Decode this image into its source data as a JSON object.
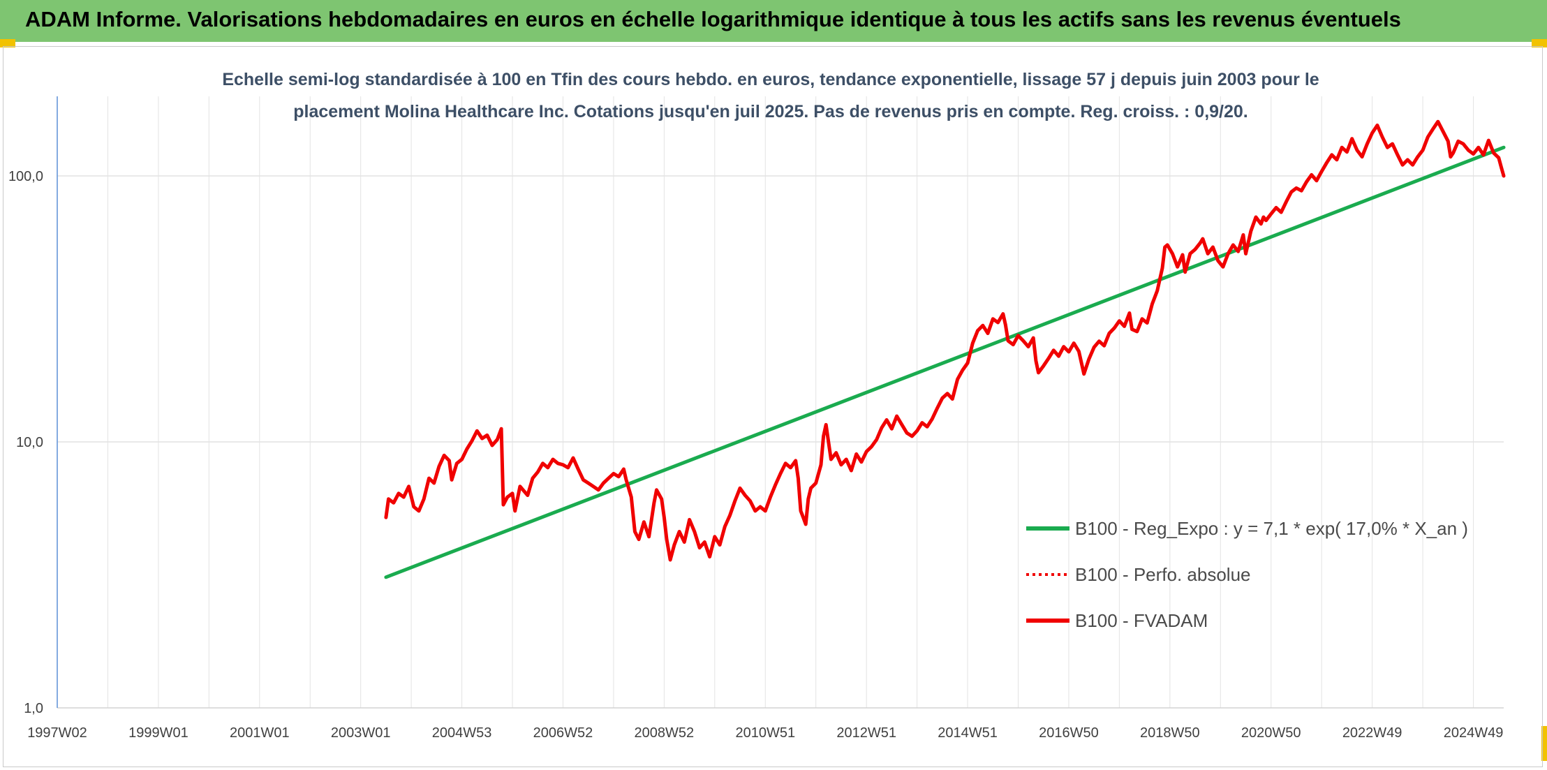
{
  "header": {
    "title": "ADAM Informe. Valorisations hebdomadaires en euros en échelle logarithmique identique à tous les actifs sans les revenus éventuels"
  },
  "colors": {
    "header_bg": "#7ec571",
    "corner_accent": "#f2c200",
    "trend": "#1aab4f",
    "series": "#f00000"
  },
  "chart_data": {
    "type": "line",
    "title_lines": [
      "Echelle semi-log standardisée à 100 en Tfin des cours hebdo. en euros, tendance exponentielle, lissage 57 j depuis juin 2003 pour le",
      "placement Molina Healthcare Inc. Cotations jusqu'en juil 2025. Pas de revenus pris en compte. Reg. croiss. : 0,9/20."
    ],
    "y_scale": "log",
    "ylim": [
      1,
      200
    ],
    "xlim": [
      1997.0,
      2025.6
    ],
    "grid": true,
    "legend_position": "right",
    "y_ticks": [
      {
        "value": 1,
        "label": "1,0"
      },
      {
        "value": 10,
        "label": "10,0"
      },
      {
        "value": 100,
        "label": "100,0"
      }
    ],
    "x_ticks": [
      {
        "value": 1997.0,
        "label": "1997W02"
      },
      {
        "value": 1999.0,
        "label": "1999W01"
      },
      {
        "value": 2001.0,
        "label": "2001W01"
      },
      {
        "value": 2003.0,
        "label": "2003W01"
      },
      {
        "value": 2005.0,
        "label": "2004W53"
      },
      {
        "value": 2007.0,
        "label": "2006W52"
      },
      {
        "value": 2009.0,
        "label": "2008W52"
      },
      {
        "value": 2011.0,
        "label": "2010W51"
      },
      {
        "value": 2013.0,
        "label": "2012W51"
      },
      {
        "value": 2015.0,
        "label": "2014W51"
      },
      {
        "value": 2017.0,
        "label": "2016W50"
      },
      {
        "value": 2019.0,
        "label": "2018W50"
      },
      {
        "value": 2021.0,
        "label": "2020W50"
      },
      {
        "value": 2023.0,
        "label": "2022W49"
      },
      {
        "value": 2025.0,
        "label": "2024W49"
      }
    ],
    "series": [
      {
        "name": "B100 - Reg_Expo : y = 7,1 * exp( 17,0% *  X_an )",
        "color": "#1aab4f",
        "style": "solid",
        "points": [
          [
            2003.5,
            3.1
          ],
          [
            2025.6,
            128
          ]
        ]
      },
      {
        "name": "B100 - Perfo. absolue",
        "color": "#f00000",
        "style": "dotted",
        "points": []
      },
      {
        "name": "B100 - FVADAM",
        "color": "#f00000",
        "style": "solid",
        "points": [
          [
            2003.5,
            5.2
          ],
          [
            2003.55,
            6.1
          ],
          [
            2003.65,
            5.9
          ],
          [
            2003.75,
            6.4
          ],
          [
            2003.85,
            6.2
          ],
          [
            2003.95,
            6.8
          ],
          [
            2004.05,
            5.7
          ],
          [
            2004.15,
            5.5
          ],
          [
            2004.25,
            6.1
          ],
          [
            2004.35,
            7.3
          ],
          [
            2004.45,
            7.0
          ],
          [
            2004.55,
            8.1
          ],
          [
            2004.65,
            8.9
          ],
          [
            2004.75,
            8.5
          ],
          [
            2004.8,
            7.2
          ],
          [
            2004.9,
            8.3
          ],
          [
            2005.0,
            8.6
          ],
          [
            2005.1,
            9.4
          ],
          [
            2005.2,
            10.1
          ],
          [
            2005.3,
            11.0
          ],
          [
            2005.4,
            10.3
          ],
          [
            2005.5,
            10.6
          ],
          [
            2005.6,
            9.7
          ],
          [
            2005.7,
            10.2
          ],
          [
            2005.78,
            11.2
          ],
          [
            2005.82,
            5.8
          ],
          [
            2005.9,
            6.2
          ],
          [
            2006.0,
            6.4
          ],
          [
            2006.05,
            5.5
          ],
          [
            2006.15,
            6.8
          ],
          [
            2006.3,
            6.3
          ],
          [
            2006.4,
            7.3
          ],
          [
            2006.5,
            7.7
          ],
          [
            2006.6,
            8.3
          ],
          [
            2006.7,
            8.0
          ],
          [
            2006.8,
            8.6
          ],
          [
            2006.9,
            8.3
          ],
          [
            2007.0,
            8.2
          ],
          [
            2007.1,
            8.0
          ],
          [
            2007.2,
            8.7
          ],
          [
            2007.3,
            7.9
          ],
          [
            2007.4,
            7.2
          ],
          [
            2007.5,
            7.0
          ],
          [
            2007.6,
            6.8
          ],
          [
            2007.7,
            6.6
          ],
          [
            2007.8,
            7.0
          ],
          [
            2007.9,
            7.3
          ],
          [
            2008.0,
            7.6
          ],
          [
            2008.1,
            7.4
          ],
          [
            2008.2,
            7.9
          ],
          [
            2008.25,
            7.2
          ],
          [
            2008.35,
            6.2
          ],
          [
            2008.42,
            4.6
          ],
          [
            2008.5,
            4.3
          ],
          [
            2008.6,
            5.0
          ],
          [
            2008.7,
            4.4
          ],
          [
            2008.8,
            5.9
          ],
          [
            2008.85,
            6.6
          ],
          [
            2008.95,
            6.1
          ],
          [
            2009.0,
            5.2
          ],
          [
            2009.05,
            4.3
          ],
          [
            2009.12,
            3.6
          ],
          [
            2009.2,
            4.1
          ],
          [
            2009.3,
            4.6
          ],
          [
            2009.4,
            4.2
          ],
          [
            2009.5,
            5.1
          ],
          [
            2009.6,
            4.6
          ],
          [
            2009.7,
            4.0
          ],
          [
            2009.8,
            4.2
          ],
          [
            2009.9,
            3.7
          ],
          [
            2010.0,
            4.4
          ],
          [
            2010.1,
            4.1
          ],
          [
            2010.2,
            4.8
          ],
          [
            2010.3,
            5.3
          ],
          [
            2010.4,
            6.0
          ],
          [
            2010.5,
            6.7
          ],
          [
            2010.6,
            6.3
          ],
          [
            2010.7,
            6.0
          ],
          [
            2010.8,
            5.5
          ],
          [
            2010.9,
            5.7
          ],
          [
            2011.0,
            5.5
          ],
          [
            2011.1,
            6.2
          ],
          [
            2011.2,
            6.9
          ],
          [
            2011.3,
            7.6
          ],
          [
            2011.4,
            8.3
          ],
          [
            2011.5,
            8.0
          ],
          [
            2011.6,
            8.5
          ],
          [
            2011.65,
            7.3
          ],
          [
            2011.7,
            5.5
          ],
          [
            2011.75,
            5.2
          ],
          [
            2011.8,
            4.9
          ],
          [
            2011.85,
            6.1
          ],
          [
            2011.9,
            6.7
          ],
          [
            2012.0,
            7.0
          ],
          [
            2012.1,
            8.2
          ],
          [
            2012.15,
            10.5
          ],
          [
            2012.2,
            11.6
          ],
          [
            2012.3,
            8.6
          ],
          [
            2012.4,
            9.1
          ],
          [
            2012.5,
            8.2
          ],
          [
            2012.6,
            8.6
          ],
          [
            2012.7,
            7.8
          ],
          [
            2012.8,
            9.0
          ],
          [
            2012.9,
            8.4
          ],
          [
            2013.0,
            9.2
          ],
          [
            2013.1,
            9.6
          ],
          [
            2013.2,
            10.2
          ],
          [
            2013.3,
            11.3
          ],
          [
            2013.4,
            12.1
          ],
          [
            2013.5,
            11.2
          ],
          [
            2013.6,
            12.5
          ],
          [
            2013.7,
            11.6
          ],
          [
            2013.8,
            10.8
          ],
          [
            2013.9,
            10.5
          ],
          [
            2014.0,
            11.0
          ],
          [
            2014.1,
            11.8
          ],
          [
            2014.2,
            11.4
          ],
          [
            2014.3,
            12.2
          ],
          [
            2014.4,
            13.4
          ],
          [
            2014.5,
            14.6
          ],
          [
            2014.6,
            15.2
          ],
          [
            2014.7,
            14.5
          ],
          [
            2014.8,
            17.2
          ],
          [
            2014.9,
            18.6
          ],
          [
            2015.0,
            19.8
          ],
          [
            2015.1,
            23.5
          ],
          [
            2015.2,
            26.2
          ],
          [
            2015.3,
            27.4
          ],
          [
            2015.4,
            25.6
          ],
          [
            2015.5,
            29.0
          ],
          [
            2015.6,
            28.1
          ],
          [
            2015.7,
            30.3
          ],
          [
            2015.75,
            27.5
          ],
          [
            2015.8,
            24.0
          ],
          [
            2015.9,
            23.2
          ],
          [
            2016.0,
            25.1
          ],
          [
            2016.1,
            24.0
          ],
          [
            2016.2,
            22.8
          ],
          [
            2016.3,
            24.6
          ],
          [
            2016.35,
            20.2
          ],
          [
            2016.4,
            18.2
          ],
          [
            2016.5,
            19.3
          ],
          [
            2016.6,
            20.6
          ],
          [
            2016.7,
            22.1
          ],
          [
            2016.8,
            21.0
          ],
          [
            2016.9,
            22.8
          ],
          [
            2017.0,
            21.8
          ],
          [
            2017.1,
            23.5
          ],
          [
            2017.2,
            21.9
          ],
          [
            2017.3,
            18.0
          ],
          [
            2017.4,
            20.5
          ],
          [
            2017.5,
            22.7
          ],
          [
            2017.6,
            23.9
          ],
          [
            2017.7,
            23.0
          ],
          [
            2017.8,
            25.6
          ],
          [
            2017.9,
            26.8
          ],
          [
            2018.0,
            28.5
          ],
          [
            2018.1,
            27.2
          ],
          [
            2018.2,
            30.5
          ],
          [
            2018.25,
            26.5
          ],
          [
            2018.35,
            26.0
          ],
          [
            2018.45,
            29.0
          ],
          [
            2018.55,
            28.0
          ],
          [
            2018.65,
            33.0
          ],
          [
            2018.75,
            37.0
          ],
          [
            2018.85,
            45.0
          ],
          [
            2018.9,
            54.0
          ],
          [
            2018.95,
            55.0
          ],
          [
            2019.05,
            51.0
          ],
          [
            2019.15,
            45.5
          ],
          [
            2019.25,
            50.5
          ],
          [
            2019.3,
            43.5
          ],
          [
            2019.4,
            51.0
          ],
          [
            2019.5,
            53.0
          ],
          [
            2019.6,
            56.0
          ],
          [
            2019.65,
            58.0
          ],
          [
            2019.75,
            51.0
          ],
          [
            2019.85,
            54.0
          ],
          [
            2019.95,
            48.0
          ],
          [
            2020.05,
            45.5
          ],
          [
            2020.15,
            51.0
          ],
          [
            2020.25,
            55.0
          ],
          [
            2020.35,
            52.0
          ],
          [
            2020.45,
            60.0
          ],
          [
            2020.5,
            51.0
          ],
          [
            2020.6,
            62.0
          ],
          [
            2020.7,
            70.0
          ],
          [
            2020.8,
            66.0
          ],
          [
            2020.85,
            70.0
          ],
          [
            2020.9,
            68.0
          ],
          [
            2021.0,
            72.0
          ],
          [
            2021.1,
            76.0
          ],
          [
            2021.2,
            73.0
          ],
          [
            2021.3,
            80.0
          ],
          [
            2021.4,
            87.0
          ],
          [
            2021.5,
            90.0
          ],
          [
            2021.6,
            88.0
          ],
          [
            2021.7,
            95.0
          ],
          [
            2021.8,
            101.0
          ],
          [
            2021.9,
            96.0
          ],
          [
            2022.0,
            104.0
          ],
          [
            2022.1,
            112.0
          ],
          [
            2022.2,
            120.0
          ],
          [
            2022.3,
            115.0
          ],
          [
            2022.4,
            128.0
          ],
          [
            2022.5,
            123.0
          ],
          [
            2022.6,
            138.0
          ],
          [
            2022.7,
            125.0
          ],
          [
            2022.8,
            118.0
          ],
          [
            2022.9,
            132.0
          ],
          [
            2023.0,
            145.0
          ],
          [
            2023.1,
            155.0
          ],
          [
            2023.2,
            140.0
          ],
          [
            2023.3,
            128.0
          ],
          [
            2023.4,
            132.0
          ],
          [
            2023.5,
            120.0
          ],
          [
            2023.6,
            110.0
          ],
          [
            2023.7,
            115.0
          ],
          [
            2023.8,
            110.0
          ],
          [
            2023.9,
            118.0
          ],
          [
            2024.0,
            125.0
          ],
          [
            2024.1,
            140.0
          ],
          [
            2024.2,
            150.0
          ],
          [
            2024.3,
            160.0
          ],
          [
            2024.4,
            147.0
          ],
          [
            2024.5,
            135.0
          ],
          [
            2024.55,
            118.0
          ],
          [
            2024.6,
            122.0
          ],
          [
            2024.7,
            135.0
          ],
          [
            2024.8,
            132.0
          ],
          [
            2024.9,
            125.0
          ],
          [
            2025.0,
            121.0
          ],
          [
            2025.1,
            128.0
          ],
          [
            2025.2,
            120.0
          ],
          [
            2025.3,
            136.0
          ],
          [
            2025.4,
            122.0
          ],
          [
            2025.5,
            117.0
          ],
          [
            2025.55,
            108.0
          ],
          [
            2025.6,
            100.0
          ]
        ]
      }
    ]
  }
}
